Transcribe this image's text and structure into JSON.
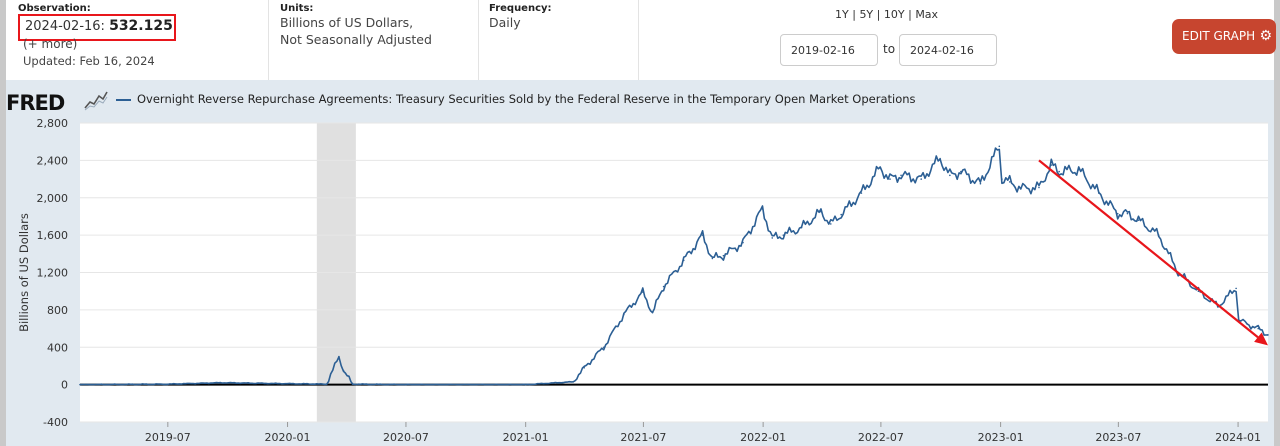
{
  "header": {
    "observation_label": "Observation:",
    "observation_date": "2024-02-16:",
    "observation_value": "532.125",
    "more_link": "(+ more)",
    "updated": "Updated: Feb 16, 2024",
    "units_label": "Units:",
    "units_line1": "Billions of US Dollars,",
    "units_line2": "Not Seasonally Adjusted",
    "frequency_label": "Frequency:",
    "frequency_value": "Daily",
    "range_options": [
      "1Y",
      "5Y",
      "10Y",
      "Max"
    ],
    "range_separator": "|",
    "start_date": "2019-02-16",
    "to_label": "to",
    "end_date": "2024-02-16",
    "edit_button": "EDIT GRAPH",
    "edit_button_icon": "gear-icon"
  },
  "logo": {
    "text": "FRED",
    "icon": "sparkline-icon"
  },
  "colors": {
    "series": "#2c5f94",
    "recession": "#e0e0e0",
    "arrow": "#e8161b",
    "plot_bg": "#ffffff",
    "chart_bg": "#e1e9f0",
    "edit_button": "#c7452f"
  },
  "chart_data": {
    "type": "line",
    "title": "",
    "ylabel": "Billions of US Dollars",
    "xlabel": "",
    "ylim": [
      -400,
      2800
    ],
    "xlim": [
      "2019-02-16",
      "2024-02-16"
    ],
    "yticks": [
      -400,
      0,
      400,
      800,
      1200,
      1600,
      2000,
      2400,
      2800
    ],
    "ytick_labels": [
      "-400",
      "0",
      "400",
      "800",
      "1,200",
      "1,600",
      "2,000",
      "2,400",
      "2,800"
    ],
    "xtick_labels": [
      "2019-07",
      "2020-01",
      "2020-07",
      "2021-01",
      "2021-07",
      "2022-01",
      "2022-07",
      "2023-01",
      "2023-07",
      "2024-01"
    ],
    "xticks": [
      "2019-07-01",
      "2020-01-01",
      "2020-07-01",
      "2021-01-01",
      "2021-07-01",
      "2022-01-01",
      "2022-07-01",
      "2023-01-01",
      "2023-07-01",
      "2024-01-01"
    ],
    "legend": "top-left",
    "grid": "horizontal",
    "series": [
      {
        "name": "Overnight Reverse Repurchase Agreements: Treasury Securities Sold by the Federal Reserve in the Temporary Open Market Operations",
        "x": [
          "2019-02-16",
          "2019-07-01",
          "2019-09-20",
          "2020-01-01",
          "2020-03-01",
          "2020-03-20",
          "2020-03-27",
          "2020-04-10",
          "2020-07-01",
          "2021-01-01",
          "2021-03-15",
          "2021-04-01",
          "2021-05-01",
          "2021-06-01",
          "2021-06-30",
          "2021-07-15",
          "2021-08-01",
          "2021-09-01",
          "2021-09-30",
          "2021-10-15",
          "2021-11-01",
          "2021-12-01",
          "2021-12-31",
          "2022-01-15",
          "2022-02-01",
          "2022-03-01",
          "2022-03-31",
          "2022-04-15",
          "2022-05-01",
          "2022-06-01",
          "2022-06-30",
          "2022-07-15",
          "2022-08-01",
          "2022-09-01",
          "2022-09-30",
          "2022-10-15",
          "2022-11-01",
          "2022-12-01",
          "2022-12-30",
          "2023-01-03",
          "2023-01-15",
          "2023-02-01",
          "2023-03-01",
          "2023-03-20",
          "2023-04-01",
          "2023-05-01",
          "2023-06-01",
          "2023-06-30",
          "2023-07-15",
          "2023-08-01",
          "2023-09-01",
          "2023-10-01",
          "2023-11-01",
          "2023-12-01",
          "2023-12-29",
          "2024-01-02",
          "2024-01-15",
          "2024-02-01",
          "2024-02-16"
        ],
        "y": [
          0,
          5,
          20,
          10,
          5,
          300,
          150,
          5,
          0,
          0,
          30,
          180,
          400,
          750,
          990,
          770,
          1050,
          1330,
          1600,
          1350,
          1380,
          1520,
          1880,
          1570,
          1600,
          1680,
          1850,
          1720,
          1820,
          2050,
          2320,
          2200,
          2240,
          2200,
          2420,
          2240,
          2280,
          2150,
          2550,
          2200,
          2170,
          2100,
          2110,
          2350,
          2280,
          2300,
          2050,
          1830,
          1830,
          1760,
          1600,
          1200,
          1000,
          840,
          1030,
          690,
          650,
          600,
          532
        ]
      }
    ],
    "annotations": [
      {
        "type": "arrow",
        "from": [
          "2023-03-01",
          2400
        ],
        "to": [
          "2024-02-16",
          420
        ]
      }
    ],
    "recession_shading": [
      [
        "2020-02-15",
        "2020-04-15"
      ]
    ]
  }
}
